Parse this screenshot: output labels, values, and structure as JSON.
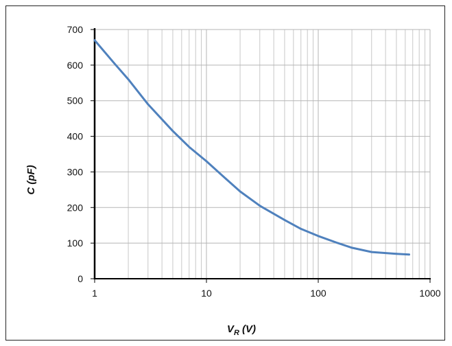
{
  "chart_data": {
    "type": "line",
    "title": "",
    "xlabel_main": "V",
    "xlabel_sub": "R",
    "xlabel_unit": " (V)",
    "ylabel": "C (pF)",
    "x_scale": "log",
    "xlim": [
      1,
      1000
    ],
    "ylim": [
      0,
      700
    ],
    "x_ticks": [
      1,
      10,
      100,
      1000
    ],
    "x_tick_labels": [
      "1",
      "10",
      "100",
      "1000"
    ],
    "y_ticks": [
      0,
      100,
      200,
      300,
      400,
      500,
      600,
      700
    ],
    "y_tick_labels": [
      "0",
      "100",
      "200",
      "300",
      "400",
      "500",
      "600",
      "700"
    ],
    "grid": true,
    "line_color": "#4f81bd",
    "series": [
      {
        "x": [
          1,
          1.5,
          2,
          3,
          5,
          7,
          10,
          15,
          20,
          30,
          50,
          70,
          100,
          150,
          200,
          300,
          500,
          650
        ],
        "y": [
          670,
          605,
          560,
          490,
          415,
          370,
          330,
          280,
          245,
          205,
          165,
          140,
          120,
          100,
          87,
          75,
          70,
          68
        ]
      }
    ]
  }
}
